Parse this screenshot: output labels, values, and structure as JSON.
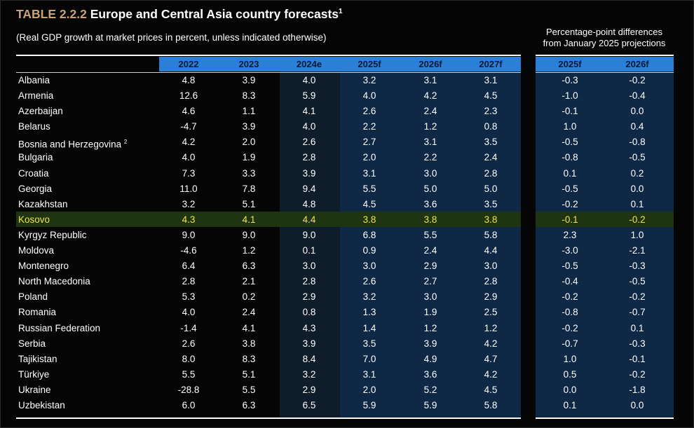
{
  "title": {
    "code": "TABLE 2.2.2",
    "text": "Europe and Central Asia country forecasts",
    "note": "1"
  },
  "subtitle": "(Real GDP growth at market prices in percent, unless indicated otherwise)",
  "diff_header": {
    "line1": "Percentage-point differences",
    "line2": "from January 2025 projections"
  },
  "columns": [
    "2022",
    "2023",
    "2024e",
    "2025f",
    "2026f",
    "2027f"
  ],
  "diff_columns": [
    "2025f",
    "2026f"
  ],
  "colors": {
    "title_code": "#c8a27a",
    "header_bar": "#2b7fd6",
    "forecast_panel": "#0e2845",
    "estimate_panel": "#0f1d2a",
    "highlight_row": "#1f3511",
    "highlight_text": "#f0e34a"
  },
  "rows": [
    {
      "country": "Albania",
      "note": "",
      "values": [
        "4.8",
        "3.9",
        "4.0",
        "3.2",
        "3.1",
        "3.1"
      ],
      "diff": [
        "-0.3",
        "-0.2"
      ]
    },
    {
      "country": "Armenia",
      "note": "",
      "values": [
        "12.6",
        "8.3",
        "5.9",
        "4.0",
        "4.2",
        "4.5"
      ],
      "diff": [
        "-1.0",
        "-0.4"
      ]
    },
    {
      "country": "Azerbaijan",
      "note": "",
      "values": [
        "4.6",
        "1.1",
        "4.1",
        "2.6",
        "2.4",
        "2.3"
      ],
      "diff": [
        "-0.1",
        "0.0"
      ]
    },
    {
      "country": "Belarus",
      "note": "",
      "values": [
        "-4.7",
        "3.9",
        "4.0",
        "2.2",
        "1.2",
        "0.8"
      ],
      "diff": [
        "1.0",
        "0.4"
      ]
    },
    {
      "country": "Bosnia and Herzegovina",
      "note": "2",
      "values": [
        "4.2",
        "2.0",
        "2.6",
        "2.7",
        "3.1",
        "3.5"
      ],
      "diff": [
        "-0.5",
        "-0.8"
      ]
    },
    {
      "country": "Bulgaria",
      "note": "",
      "values": [
        "4.0",
        "1.9",
        "2.8",
        "2.0",
        "2.2",
        "2.4"
      ],
      "diff": [
        "-0.8",
        "-0.5"
      ]
    },
    {
      "country": "Croatia",
      "note": "",
      "values": [
        "7.3",
        "3.3",
        "3.9",
        "3.1",
        "3.0",
        "2.8"
      ],
      "diff": [
        "0.1",
        "0.2"
      ]
    },
    {
      "country": "Georgia",
      "note": "",
      "values": [
        "11.0",
        "7.8",
        "9.4",
        "5.5",
        "5.0",
        "5.0"
      ],
      "diff": [
        "-0.5",
        "0.0"
      ]
    },
    {
      "country": "Kazakhstan",
      "note": "",
      "values": [
        "3.2",
        "5.1",
        "4.8",
        "4.5",
        "3.6",
        "3.5"
      ],
      "diff": [
        "-0.2",
        "0.1"
      ]
    },
    {
      "country": "Kosovo",
      "note": "",
      "values": [
        "4.3",
        "4.1",
        "4.4",
        "3.8",
        "3.8",
        "3.8"
      ],
      "diff": [
        "-0.1",
        "-0.2"
      ]
    },
    {
      "country": "Kyrgyz Republic",
      "note": "",
      "values": [
        "9.0",
        "9.0",
        "9.0",
        "6.8",
        "5.5",
        "5.8"
      ],
      "diff": [
        "2.3",
        "1.0"
      ]
    },
    {
      "country": "Moldova",
      "note": "",
      "values": [
        "-4.6",
        "1.2",
        "0.1",
        "0.9",
        "2.4",
        "4.4"
      ],
      "diff": [
        "-3.0",
        "-2.1"
      ]
    },
    {
      "country": "Montenegro",
      "note": "",
      "values": [
        "6.4",
        "6.3",
        "3.0",
        "3.0",
        "2.9",
        "3.0"
      ],
      "diff": [
        "-0.5",
        "-0.3"
      ]
    },
    {
      "country": "North Macedonia",
      "note": "",
      "values": [
        "2.8",
        "2.1",
        "2.8",
        "2.6",
        "2.7",
        "2.8"
      ],
      "diff": [
        "-0.4",
        "-0.5"
      ]
    },
    {
      "country": "Poland",
      "note": "",
      "values": [
        "5.3",
        "0.2",
        "2.9",
        "3.2",
        "3.0",
        "2.9"
      ],
      "diff": [
        "-0.2",
        "-0.2"
      ]
    },
    {
      "country": "Romania",
      "note": "",
      "values": [
        "4.0",
        "2.4",
        "0.8",
        "1.3",
        "1.9",
        "2.5"
      ],
      "diff": [
        "-0.8",
        "-0.7"
      ]
    },
    {
      "country": "Russian Federation",
      "note": "",
      "values": [
        "-1.4",
        "4.1",
        "4.3",
        "1.4",
        "1.2",
        "1.2"
      ],
      "diff": [
        "-0.2",
        "0.1"
      ]
    },
    {
      "country": "Serbia",
      "note": "",
      "values": [
        "2.6",
        "3.8",
        "3.9",
        "3.5",
        "3.9",
        "4.2"
      ],
      "diff": [
        "-0.7",
        "-0.3"
      ]
    },
    {
      "country": "Tajikistan",
      "note": "",
      "values": [
        "8.0",
        "8.3",
        "8.4",
        "7.0",
        "4.9",
        "4.7"
      ],
      "diff": [
        "1.0",
        "-0.1"
      ]
    },
    {
      "country": "Türkiye",
      "note": "",
      "values": [
        "5.5",
        "5.1",
        "3.2",
        "3.1",
        "3.6",
        "4.2"
      ],
      "diff": [
        "0.5",
        "-0.2"
      ]
    },
    {
      "country": "Ukraine",
      "note": "",
      "values": [
        "-28.8",
        "5.5",
        "2.9",
        "2.0",
        "5.2",
        "4.5"
      ],
      "diff": [
        "0.0",
        "-1.8"
      ]
    },
    {
      "country": "Uzbekistan",
      "note": "",
      "values": [
        "6.0",
        "6.3",
        "6.5",
        "5.9",
        "5.9",
        "5.8"
      ],
      "diff": [
        "0.1",
        "0.0"
      ]
    }
  ]
}
